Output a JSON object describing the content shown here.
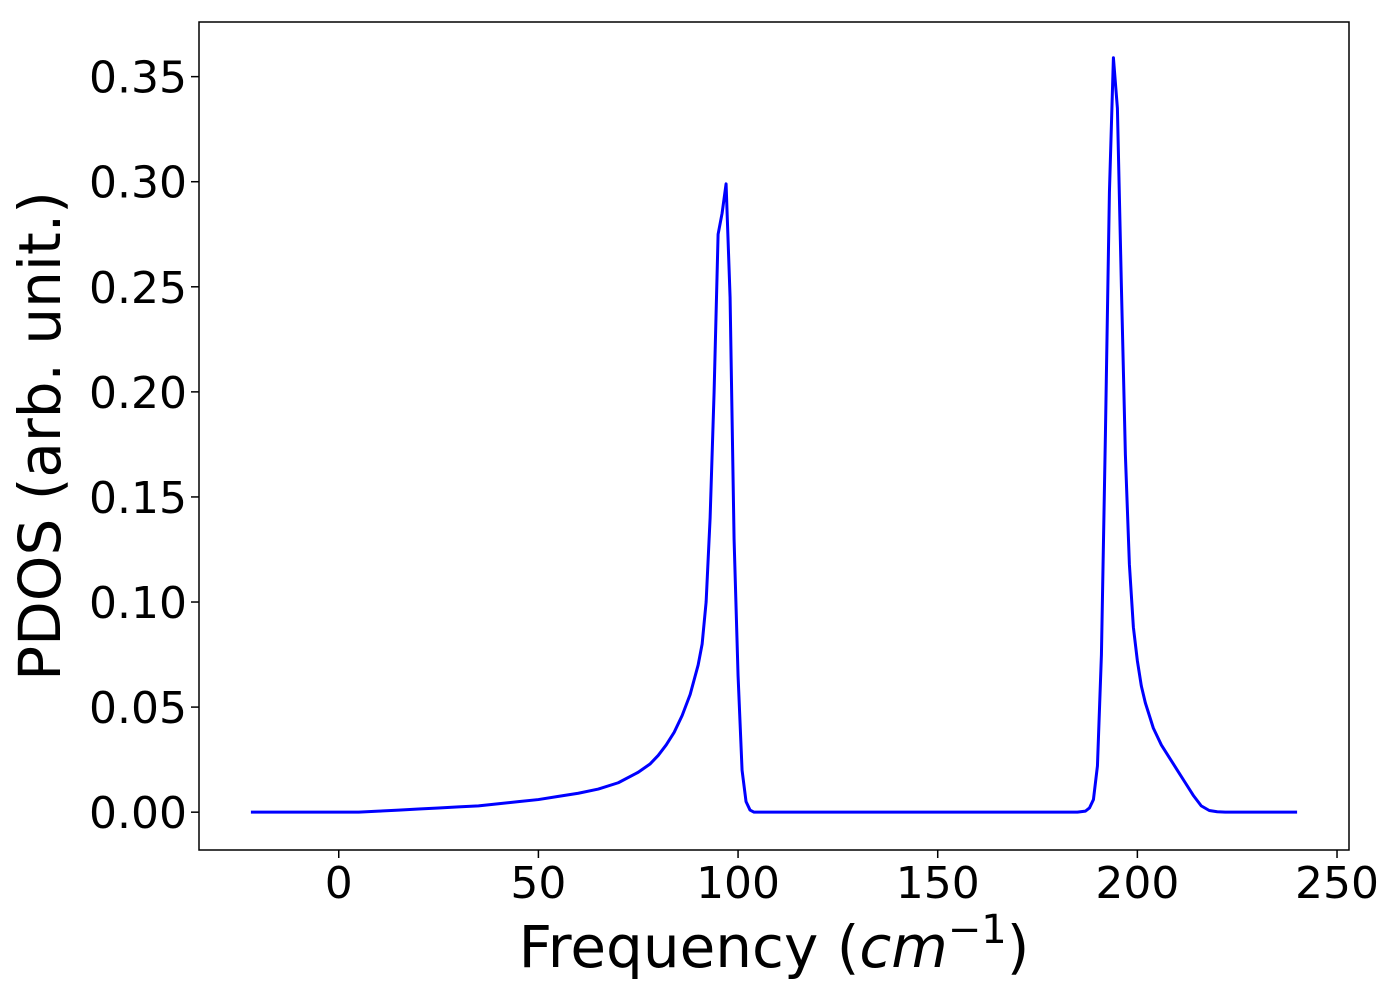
{
  "chart_data": {
    "type": "line",
    "title": "",
    "xlabel": {
      "prefix": "Frequency (",
      "unit": "cm",
      "exponent": "−1",
      "suffix": ")"
    },
    "ylabel": "PDOS (arb. unit.)",
    "xlim": [
      -35,
      253
    ],
    "ylim": [
      -0.018,
      0.376
    ],
    "xticks": [
      0,
      50,
      100,
      150,
      200,
      250
    ],
    "xtick_labels": [
      "0",
      "50",
      "100",
      "150",
      "200",
      "250"
    ],
    "yticks": [
      0.0,
      0.05,
      0.1,
      0.15,
      0.2,
      0.25,
      0.3,
      0.35
    ],
    "ytick_labels": [
      "0.00",
      "0.05",
      "0.10",
      "0.15",
      "0.20",
      "0.25",
      "0.30",
      "0.35"
    ],
    "grid": false,
    "legend": "none",
    "series": [
      {
        "color": "#0000ff",
        "x": [
          -22,
          0,
          5,
          10,
          15,
          20,
          25,
          30,
          35,
          40,
          45,
          50,
          55,
          60,
          65,
          70,
          75,
          78,
          80,
          82,
          84,
          86,
          88,
          90,
          91,
          92,
          93,
          94,
          95,
          96,
          97,
          98,
          99,
          100,
          101,
          102,
          103,
          104,
          105,
          106,
          110,
          150,
          185,
          187,
          188,
          189,
          190,
          191,
          192,
          193,
          194,
          195,
          196,
          197,
          198,
          199,
          200,
          201,
          202,
          203,
          204,
          205,
          206,
          208,
          210,
          212,
          214,
          216,
          218,
          220,
          222,
          224,
          230,
          240
        ],
        "y": [
          0.0,
          0.0,
          0.0,
          0.0005,
          0.001,
          0.0015,
          0.002,
          0.0025,
          0.003,
          0.004,
          0.005,
          0.006,
          0.0075,
          0.009,
          0.011,
          0.014,
          0.019,
          0.023,
          0.027,
          0.032,
          0.038,
          0.046,
          0.056,
          0.07,
          0.08,
          0.1,
          0.14,
          0.2,
          0.275,
          0.285,
          0.299,
          0.245,
          0.13,
          0.065,
          0.02,
          0.005,
          0.001,
          0.0,
          0.0,
          0.0,
          0.0,
          0.0,
          0.0,
          0.0005,
          0.002,
          0.006,
          0.022,
          0.075,
          0.18,
          0.295,
          0.359,
          0.335,
          0.25,
          0.17,
          0.118,
          0.088,
          0.072,
          0.06,
          0.052,
          0.046,
          0.04,
          0.036,
          0.032,
          0.026,
          0.02,
          0.014,
          0.008,
          0.003,
          0.0008,
          0.0002,
          0.0,
          0.0,
          0.0,
          0.0
        ]
      }
    ]
  }
}
